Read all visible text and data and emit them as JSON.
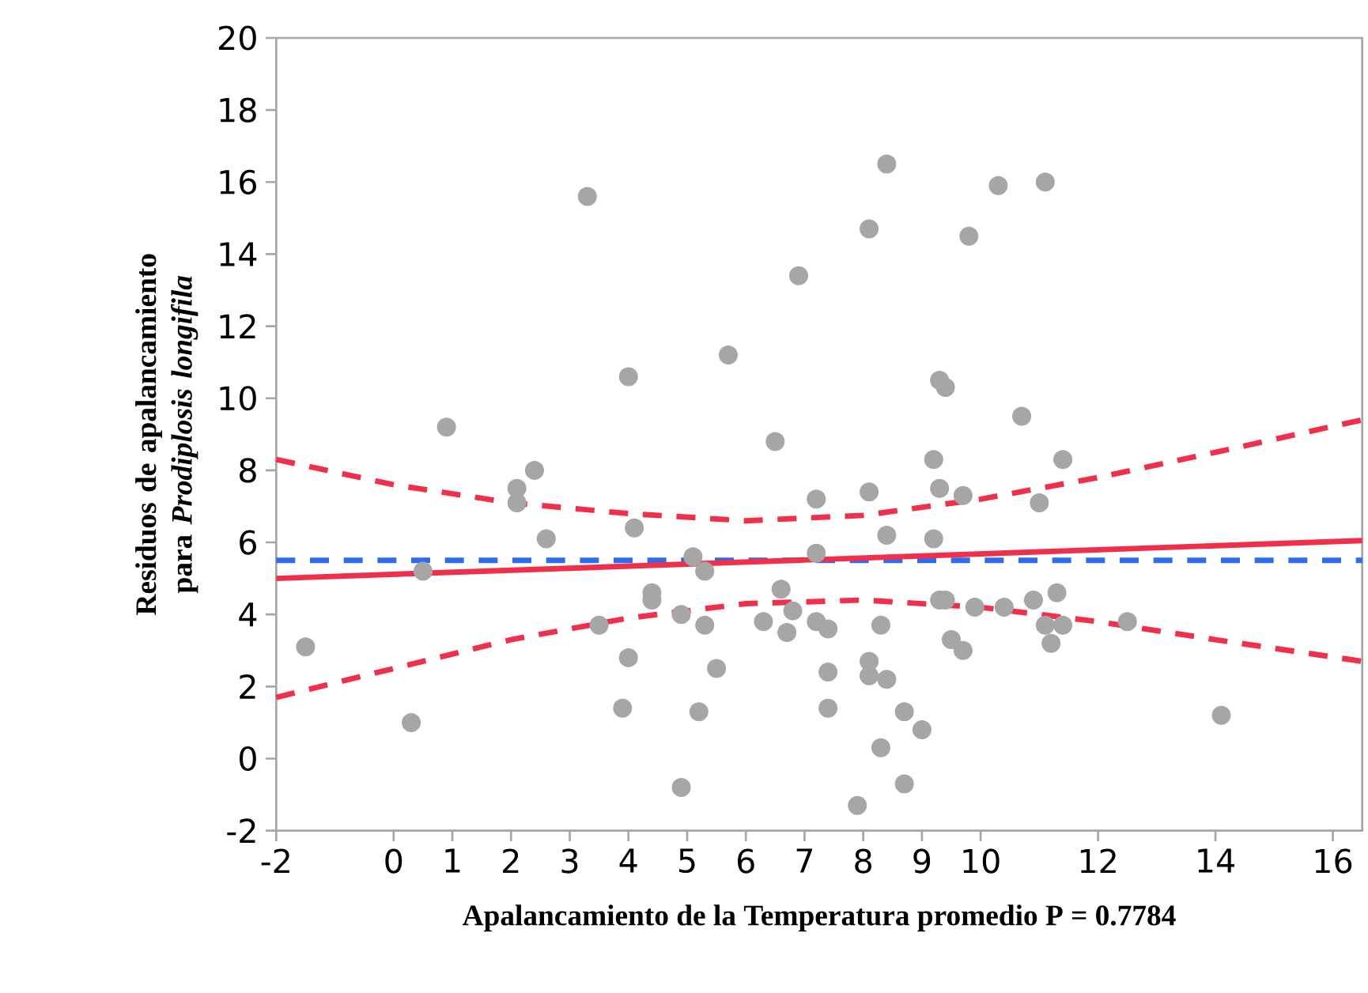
{
  "chart_data": {
    "type": "scatter",
    "xlabel": "Apalancamiento de la Temperatura promedio P = 0.7784",
    "ylabel": "Residuos de apalancamiento para *Prodiplosis longifila*",
    "xlim": [
      -2,
      16.5
    ],
    "ylim": [
      -2,
      20
    ],
    "xticks": [
      -2,
      0,
      1,
      2,
      3,
      4,
      5,
      6,
      7,
      8,
      9,
      10,
      12,
      14,
      16
    ],
    "yticks": [
      -2,
      0,
      2,
      4,
      6,
      8,
      10,
      12,
      14,
      16,
      18,
      20
    ],
    "series": [
      {
        "type": "line",
        "color": "#2d6bf0",
        "line_style": "dashed",
        "marker": "none",
        "x": [
          -2,
          16.5
        ],
        "values": [
          5.5,
          5.5
        ]
      },
      {
        "type": "line",
        "color": "#f0304a",
        "line_style": "solid",
        "marker": "none",
        "x": [
          -2,
          16.5
        ],
        "values": [
          5.0,
          6.05
        ]
      },
      {
        "type": "line",
        "color": "#f0304a",
        "line_style": "dashed",
        "marker": "none",
        "x": [
          -2,
          0,
          2,
          4,
          6,
          8,
          10,
          12,
          14,
          16.5
        ],
        "values": [
          8.3,
          7.6,
          7.1,
          6.8,
          6.6,
          6.75,
          7.2,
          7.8,
          8.5,
          9.4
        ]
      },
      {
        "type": "line",
        "color": "#f0304a",
        "line_style": "dashed",
        "marker": "none",
        "x": [
          -2,
          0,
          2,
          4,
          6,
          8,
          10,
          12,
          14,
          16.5
        ],
        "values": [
          1.7,
          2.5,
          3.3,
          3.9,
          4.3,
          4.4,
          4.2,
          3.8,
          3.3,
          2.7
        ]
      },
      {
        "color": "#a6a6a6",
        "marker": "circle",
        "x": [
          -1.5,
          0.3,
          0.5,
          0.9,
          2.1,
          2.1,
          2.4,
          2.6,
          3.3,
          3.5,
          4.0,
          4.1,
          4.0,
          3.9,
          4.4,
          4.4,
          4.9,
          4.9,
          5.1,
          5.3,
          5.3,
          5.5,
          5.2,
          5.7,
          6.3,
          6.5,
          6.6,
          6.7,
          6.8,
          6.9,
          7.2,
          7.2,
          7.2,
          7.4,
          7.4,
          7.4,
          7.9,
          8.1,
          8.1,
          8.1,
          8.1,
          8.3,
          8.3,
          8.4,
          8.4,
          8.4,
          8.7,
          8.7,
          9.0,
          9.2,
          9.2,
          9.3,
          9.3,
          9.4,
          9.3,
          9.4,
          9.5,
          9.7,
          9.7,
          9.8,
          9.9,
          10.3,
          10.4,
          10.7,
          10.9,
          11.0,
          11.1,
          11.1,
          11.2,
          11.3,
          11.4,
          11.4,
          12.5,
          14.1
        ],
        "values": [
          3.1,
          1.0,
          5.2,
          9.2,
          7.5,
          7.1,
          8.0,
          6.1,
          15.6,
          3.7,
          10.6,
          6.4,
          2.8,
          1.4,
          4.6,
          4.4,
          4.0,
          -0.8,
          5.6,
          5.2,
          3.7,
          2.5,
          1.3,
          11.2,
          3.8,
          8.8,
          4.7,
          3.5,
          4.1,
          13.4,
          7.2,
          5.7,
          3.8,
          3.6,
          2.4,
          1.4,
          -1.3,
          2.3,
          14.7,
          7.4,
          2.7,
          3.7,
          0.3,
          6.2,
          2.2,
          16.5,
          1.3,
          -0.7,
          0.8,
          8.3,
          6.1,
          10.5,
          7.5,
          10.3,
          4.4,
          4.4,
          3.3,
          3.0,
          7.3,
          14.5,
          4.2,
          15.9,
          4.2,
          9.5,
          4.4,
          7.1,
          16.0,
          3.7,
          3.2,
          4.6,
          8.3,
          3.7,
          3.8,
          1.2
        ]
      }
    ]
  }
}
